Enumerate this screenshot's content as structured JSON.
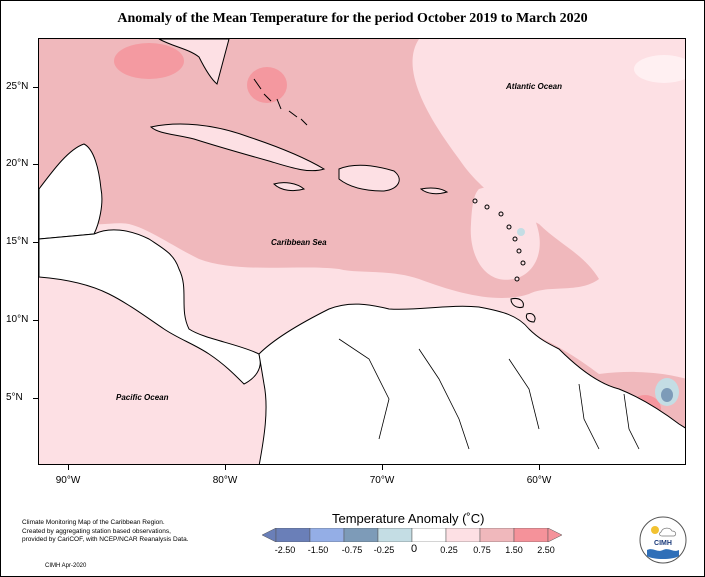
{
  "title": "Anomaly of the Mean Temperature for the period October 2019 to March 2020",
  "lat_labels": [
    "25°N",
    "20°N",
    "15°N",
    "10°N",
    "5°N"
  ],
  "lon_labels": [
    "90°W",
    "80°W",
    "70°W",
    "60°W"
  ],
  "ocean_labels": {
    "atlantic": "Atlantic Ocean",
    "caribbean": "Caribbean Sea",
    "pacific": "Pacific Ocean"
  },
  "legend": {
    "title": "Temperature Anomaly (˚C)",
    "tick_labels": [
      "-2.50",
      "-1.50",
      "-0.75",
      "-0.25",
      "0",
      "0.25",
      "0.75",
      "1.50",
      "2.50"
    ],
    "colors": [
      "#6a7fb8",
      "#94aee6",
      "#7d9bb8",
      "#c4dde4",
      "#ffffff",
      "#fde0e4",
      "#f0b8bc",
      "#f5929a"
    ]
  },
  "footnote": {
    "line1": "Climate Monitoring Map of the Caribbean Region.",
    "line2": "Created by aggregating station based observations,",
    "line3": "provided by CariCOF, with NCEP/NCAR Reanalysis Data.",
    "date": "CIMH Apr-2020"
  },
  "logo": {
    "text": "CIMH"
  }
}
